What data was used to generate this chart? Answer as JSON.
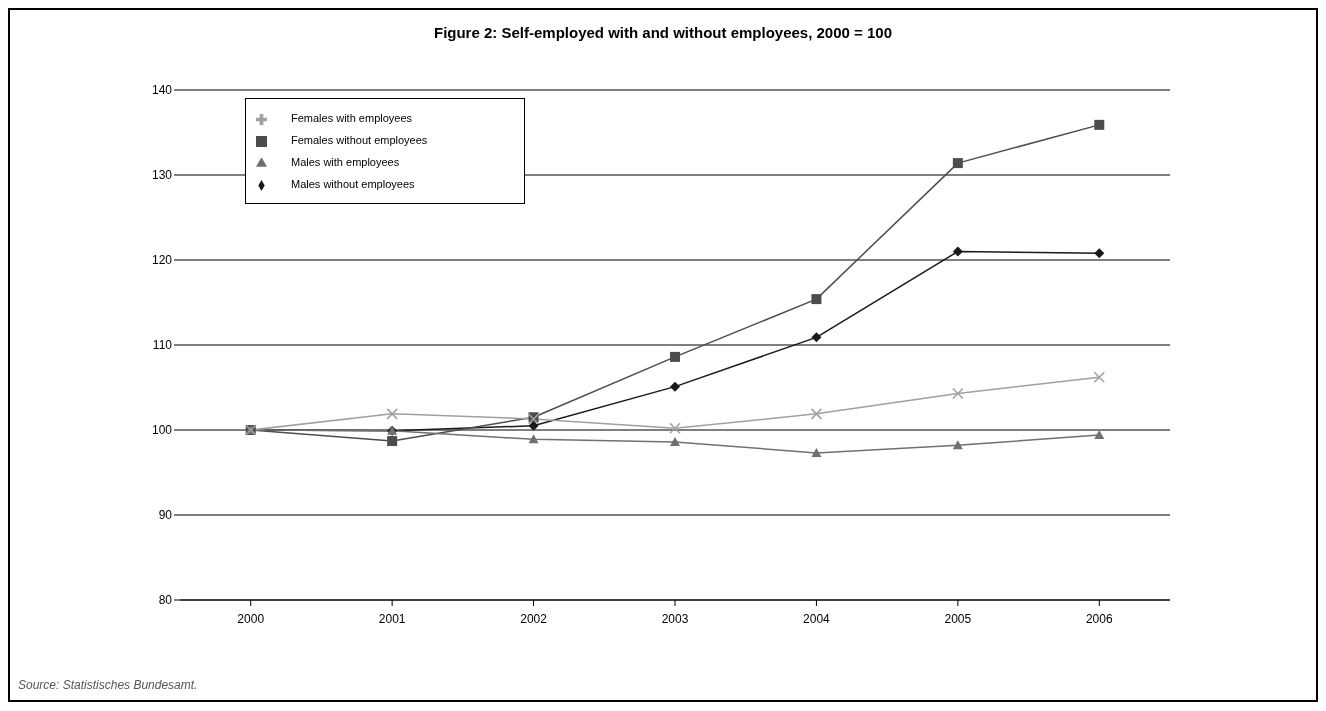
{
  "chart_data": {
    "type": "line",
    "title": "Figure 2: Self-employed with and without employees, 2000 = 100",
    "categories": [
      "2000",
      "2001",
      "2002",
      "2003",
      "2004",
      "2005",
      "2006"
    ],
    "series": [
      {
        "name": "Males without employees",
        "color": "#1a1a1a",
        "marker": "diamond",
        "values": [
          100,
          99.9,
          100.5,
          105.1,
          110.9,
          121.0,
          120.8
        ]
      },
      {
        "name": "Females without employees",
        "color": "#4d4d4d",
        "marker": "square",
        "values": [
          100,
          98.7,
          101.5,
          108.6,
          115.4,
          131.4,
          135.9
        ]
      },
      {
        "name": "Males with employees",
        "color": "#707070",
        "marker": "triangle",
        "values": [
          100,
          99.9,
          98.9,
          98.6,
          97.3,
          98.2,
          99.4
        ]
      },
      {
        "name": "Females with employees",
        "color": "#a0a0a0",
        "marker": "cross",
        "values": [
          100,
          101.9,
          101.3,
          100.2,
          101.9,
          104.3,
          106.2
        ]
      }
    ],
    "ylim": [
      80,
      140
    ],
    "yticks": [
      80,
      90,
      100,
      110,
      120,
      130,
      140
    ],
    "grid": "y",
    "legend": "top left",
    "annotations": [
      "Source: Statistisches Bundesamt."
    ]
  }
}
